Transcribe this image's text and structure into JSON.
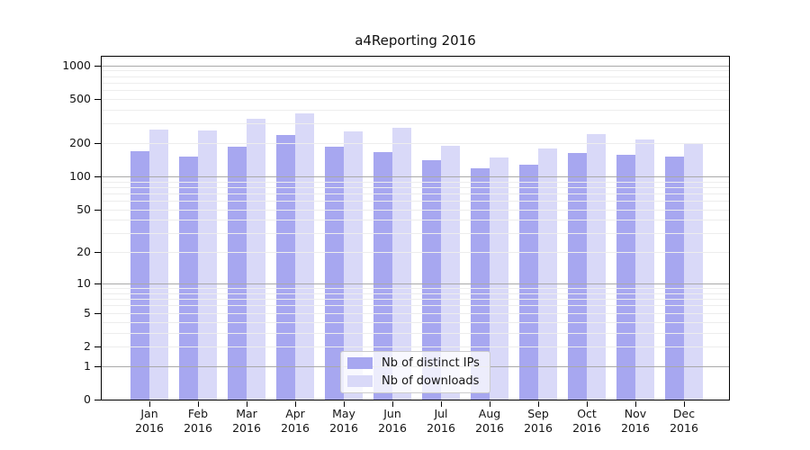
{
  "chart_data": {
    "type": "bar",
    "title": "a4Reporting 2016",
    "categories": [
      "Jan",
      "Feb",
      "Mar",
      "Apr",
      "May",
      "Jun",
      "Jul",
      "Aug",
      "Sep",
      "Oct",
      "Nov",
      "Dec"
    ],
    "x_sublabel": "2016",
    "series": [
      {
        "name": "Nb of distinct IPs",
        "color": "#a7a7f0",
        "values": [
          170,
          150,
          186,
          238,
          186,
          167,
          139,
          118,
          127,
          164,
          158,
          152
        ]
      },
      {
        "name": "Nb of downloads",
        "color": "#d9d9f8",
        "values": [
          265,
          258,
          329,
          374,
          257,
          276,
          188,
          148,
          180,
          241,
          216,
          202
        ]
      }
    ],
    "yscale": "log10(value+1)",
    "y_ticks": [
      0,
      1,
      2,
      5,
      10,
      20,
      50,
      100,
      200,
      500,
      1000
    ],
    "ylim": [
      0,
      1200
    ],
    "grid": true,
    "legend_position": "bottom-center",
    "colors": {
      "major_grid": "#a9a9a9",
      "minor_grid": "#ededed",
      "axis": "#000000",
      "background": "#ffffff"
    }
  }
}
